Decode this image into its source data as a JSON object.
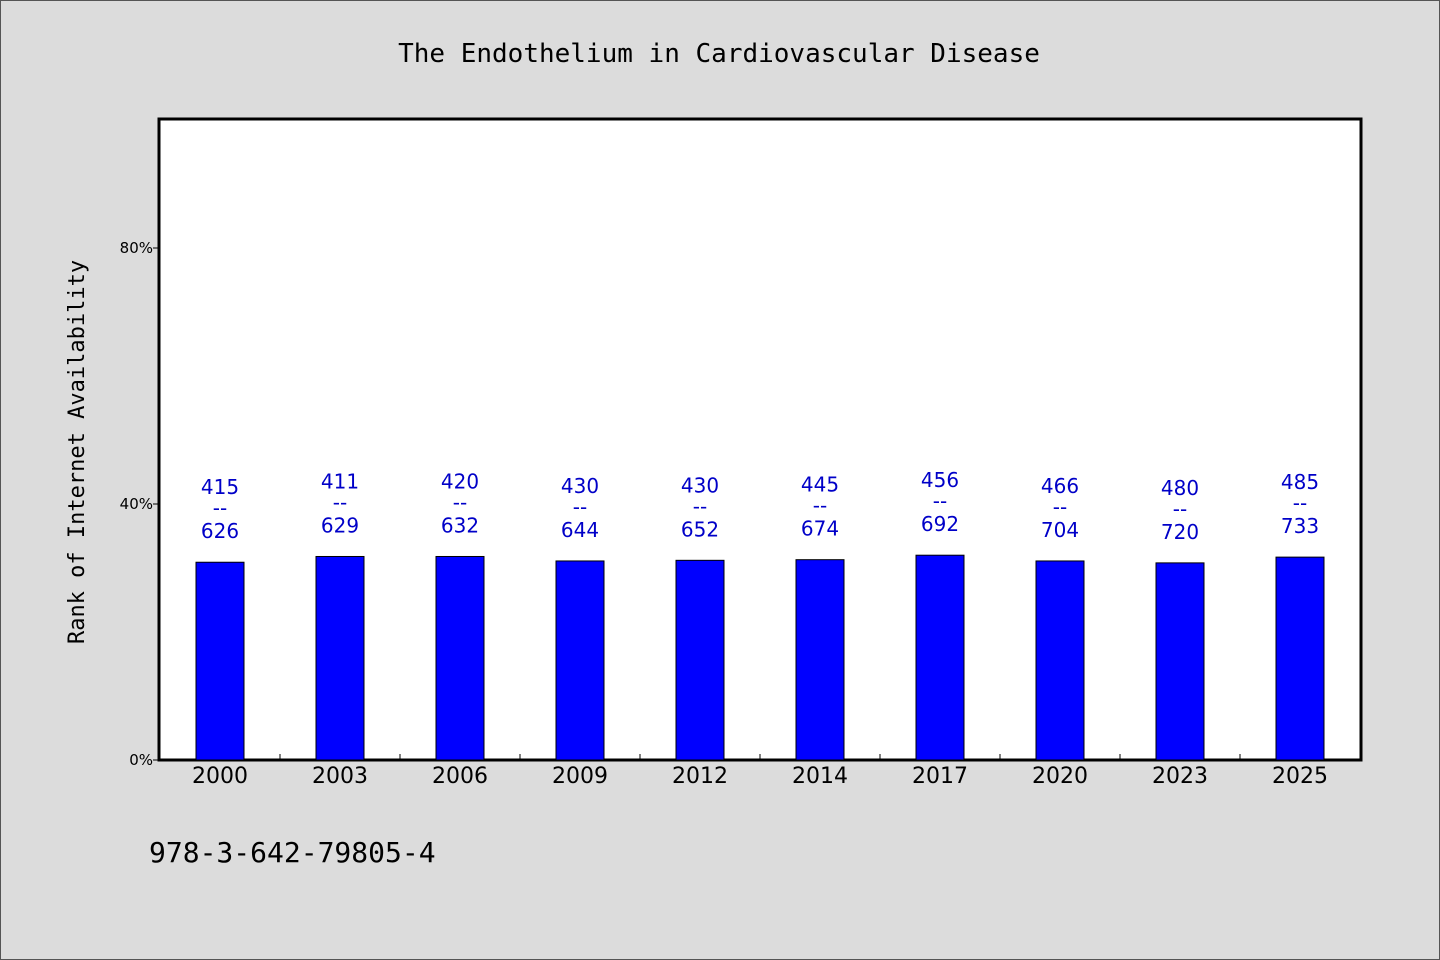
{
  "chart_data": {
    "type": "bar",
    "title": "The Endothelium in Cardiovascular Disease",
    "xlabel": "",
    "ylabel": "Rank of Internet Availability",
    "categories": [
      "2000",
      "2003",
      "2006",
      "2009",
      "2012",
      "2014",
      "2017",
      "2020",
      "2023",
      "2025"
    ],
    "values": [
      30.9,
      31.8,
      31.8,
      31.1,
      31.2,
      31.3,
      32.0,
      31.1,
      30.8,
      31.7
    ],
    "data_labels": [
      {
        "top": "415",
        "sep": "--",
        "bottom": "626"
      },
      {
        "top": "411",
        "sep": "--",
        "bottom": "629"
      },
      {
        "top": "420",
        "sep": "--",
        "bottom": "632"
      },
      {
        "top": "430",
        "sep": "--",
        "bottom": "644"
      },
      {
        "top": "430",
        "sep": "--",
        "bottom": "652"
      },
      {
        "top": "445",
        "sep": "--",
        "bottom": "674"
      },
      {
        "top": "456",
        "sep": "--",
        "bottom": "692"
      },
      {
        "top": "466",
        "sep": "--",
        "bottom": "704"
      },
      {
        "top": "480",
        "sep": "--",
        "bottom": "720"
      },
      {
        "top": "485",
        "sep": "--",
        "bottom": "733"
      }
    ],
    "yticks": [
      0,
      40,
      80
    ],
    "ytick_labels": [
      "0%",
      "40%",
      "80%"
    ],
    "ylim": [
      0,
      100
    ],
    "grid": false,
    "bar_color": "#0000ff",
    "label_color": "#0000c8"
  },
  "footnote": "978-3-642-79805-4"
}
